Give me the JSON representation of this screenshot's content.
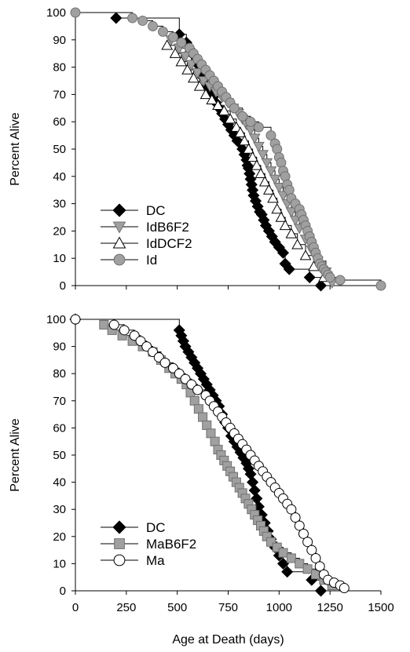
{
  "colors": {
    "DC": "#000000",
    "gray_marker": "#a0a0a0",
    "gray_edge": "#707070",
    "open_marker": "#ffffff",
    "step_line": "#000000"
  },
  "chart_data": [
    {
      "type": "line",
      "title": "",
      "xlabel": "",
      "ylabel": "Percent Alive",
      "xlim": [
        0,
        1500
      ],
      "ylim": [
        0,
        100
      ],
      "xticks": [],
      "yticks": [
        "0",
        "10",
        "20",
        "30",
        "40",
        "50",
        "60",
        "70",
        "80",
        "90",
        "100"
      ],
      "grid": false,
      "legend_position": "bottom-left",
      "series": [
        {
          "name": "DC",
          "marker": "diamond",
          "fill": "#000000",
          "stroke": "#000000",
          "x": [
            200,
            510,
            545,
            570,
            585,
            600,
            615,
            630,
            645,
            660,
            675,
            690,
            705,
            720,
            735,
            750,
            765,
            780,
            795,
            810,
            820,
            830,
            840,
            845,
            850,
            855,
            860,
            865,
            870,
            875,
            885,
            895,
            905,
            915,
            925,
            935,
            950,
            965,
            980,
            1000,
            1020,
            1030,
            1050,
            1150,
            1205
          ],
          "y": [
            98,
            92,
            89,
            86,
            84,
            81,
            78,
            76,
            73,
            71,
            69,
            67,
            65,
            63,
            61,
            59,
            57,
            55,
            53,
            52,
            50,
            48,
            46,
            44,
            43,
            41,
            39,
            37,
            35,
            33,
            31,
            29,
            27,
            26,
            24,
            22,
            20,
            18,
            16,
            14,
            12,
            8,
            6,
            3,
            0
          ]
        },
        {
          "name": "IdB6F2",
          "marker": "triangle-down",
          "fill": "#a0a0a0",
          "stroke": "#707070",
          "x": [
            470,
            510,
            540,
            570,
            600,
            630,
            660,
            690,
            720,
            750,
            775,
            800,
            820,
            840,
            860,
            880,
            900,
            920,
            940,
            960,
            980,
            1000,
            1020,
            1040,
            1060,
            1080,
            1100,
            1130,
            1160,
            1190,
            1230,
            1260
          ],
          "y": [
            90,
            87,
            84,
            81,
            78,
            75,
            73,
            71,
            69,
            67,
            65,
            63,
            61,
            59,
            57,
            54,
            51,
            48,
            45,
            42,
            39,
            36,
            33,
            30,
            27,
            24,
            21,
            17,
            13,
            9,
            5,
            1
          ]
        },
        {
          "name": "IdDCF2",
          "marker": "triangle-up",
          "fill": "#ffffff",
          "stroke": "#000000",
          "x": [
            450,
            490,
            520,
            550,
            580,
            610,
            640,
            670,
            700,
            730,
            760,
            790,
            810,
            830,
            850,
            870,
            890,
            910,
            930,
            950,
            970,
            990,
            1010,
            1030,
            1060,
            1090,
            1130,
            1170,
            1220
          ],
          "y": [
            88,
            85,
            82,
            79,
            76,
            73,
            70,
            68,
            66,
            64,
            61,
            58,
            56,
            53,
            50,
            47,
            44,
            41,
            38,
            35,
            32,
            28,
            25,
            22,
            19,
            15,
            11,
            7,
            3
          ]
        },
        {
          "name": "Id",
          "marker": "circle",
          "fill": "#a0a0a0",
          "stroke": "#707070",
          "x": [
            0,
            280,
            330,
            380,
            430,
            480,
            520,
            560,
            580,
            600,
            620,
            640,
            660,
            680,
            700,
            720,
            740,
            760,
            780,
            820,
            860,
            900,
            960,
            980,
            990,
            1000,
            1010,
            1020,
            1030,
            1040,
            1050,
            1060,
            1080,
            1100,
            1110,
            1120,
            1130,
            1140,
            1150,
            1160,
            1170,
            1180,
            1190,
            1200,
            1210,
            1220,
            1230,
            1240,
            1250,
            1300,
            1500
          ],
          "y": [
            100,
            98,
            97,
            95,
            93,
            91,
            89,
            87,
            85,
            83,
            81,
            79,
            77,
            75,
            73,
            71,
            69,
            67,
            65,
            62,
            60,
            58,
            55,
            52,
            50,
            47,
            45,
            42,
            40,
            37,
            35,
            32,
            30,
            28,
            26,
            24,
            22,
            20,
            18,
            16,
            14,
            12,
            10,
            8,
            7,
            6,
            5,
            4,
            3,
            2,
            0
          ]
        }
      ]
    },
    {
      "type": "line",
      "title": "",
      "xlabel": "Age at Death (days)",
      "ylabel": "Percent Alive",
      "xlim": [
        0,
        1500
      ],
      "ylim": [
        0,
        100
      ],
      "xticks": [
        "0",
        "250",
        "500",
        "750",
        "1000",
        "1250",
        "1500"
      ],
      "yticks": [
        "0",
        "10",
        "20",
        "30",
        "40",
        "50",
        "60",
        "70",
        "80",
        "90",
        "100"
      ],
      "grid": false,
      "legend_position": "bottom-left",
      "series": [
        {
          "name": "DC",
          "marker": "diamond",
          "fill": "#000000",
          "stroke": "#000000",
          "x": [
            0,
            510,
            520,
            530,
            540,
            555,
            570,
            585,
            600,
            615,
            630,
            645,
            660,
            675,
            690,
            705,
            720,
            735,
            750,
            765,
            780,
            795,
            810,
            825,
            840,
            850,
            860,
            870,
            880,
            890,
            900,
            915,
            930,
            945,
            960,
            980,
            1000,
            1020,
            1040,
            1160,
            1205
          ],
          "y": [
            100,
            96,
            94,
            92,
            90,
            88,
            86,
            84,
            82,
            80,
            78,
            76,
            74,
            72,
            70,
            68,
            65,
            62,
            60,
            57,
            55,
            53,
            51,
            49,
            47,
            45,
            43,
            40,
            37,
            34,
            31,
            28,
            25,
            22,
            19,
            16,
            13,
            10,
            7,
            4,
            0
          ]
        },
        {
          "name": "MaB6F2",
          "marker": "square",
          "fill": "#a0a0a0",
          "stroke": "#707070",
          "x": [
            140,
            180,
            230,
            280,
            330,
            380,
            420,
            460,
            490,
            520,
            545,
            565,
            585,
            605,
            625,
            645,
            665,
            685,
            700,
            715,
            730,
            745,
            760,
            775,
            790,
            805,
            820,
            835,
            850,
            865,
            880,
            895,
            910,
            925,
            940,
            960,
            990,
            1020,
            1060,
            1100,
            1140,
            1180,
            1220,
            1260
          ],
          "y": [
            98,
            96,
            94,
            92,
            90,
            88,
            85,
            82,
            80,
            78,
            76,
            73,
            70,
            67,
            64,
            61,
            58,
            55,
            52,
            50,
            48,
            46,
            44,
            42,
            40,
            38,
            36,
            34,
            32,
            30,
            28,
            26,
            24,
            22,
            20,
            18,
            16,
            14,
            12,
            10,
            8,
            6,
            4,
            2
          ]
        },
        {
          "name": "Ma",
          "marker": "circle",
          "fill": "#ffffff",
          "stroke": "#000000",
          "x": [
            0,
            190,
            240,
            290,
            320,
            350,
            380,
            410,
            440,
            480,
            510,
            540,
            570,
            600,
            640,
            660,
            680,
            700,
            720,
            740,
            760,
            780,
            800,
            820,
            840,
            860,
            880,
            900,
            920,
            940,
            960,
            980,
            1000,
            1020,
            1040,
            1060,
            1080,
            1100,
            1120,
            1140,
            1160,
            1180,
            1200,
            1220,
            1240,
            1270,
            1300,
            1320
          ],
          "y": [
            100,
            98,
            96,
            94,
            92,
            90,
            88,
            86,
            84,
            82,
            80,
            78,
            76,
            74,
            72,
            70,
            68,
            66,
            64,
            62,
            60,
            58,
            56,
            54,
            52,
            50,
            48,
            46,
            44,
            42,
            40,
            38,
            36,
            34,
            32,
            30,
            27,
            24,
            21,
            18,
            15,
            12,
            9,
            6,
            4,
            3,
            2,
            1
          ]
        }
      ]
    }
  ]
}
